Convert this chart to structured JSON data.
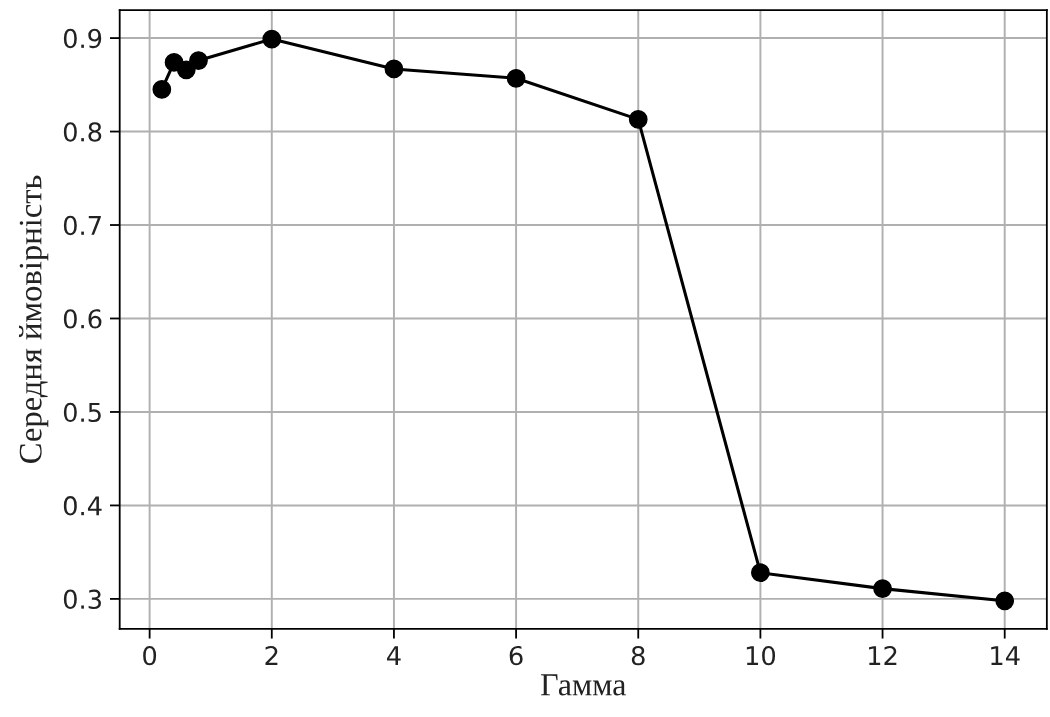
{
  "chart_data": {
    "type": "line",
    "xlabel": "Гамма",
    "ylabel": "Середня ймовірність",
    "x": [
      0.2,
      0.4,
      0.6,
      0.8,
      2,
      4,
      6,
      8,
      10,
      12,
      14
    ],
    "series": [
      {
        "color": "#000000",
        "values": [
          0.845,
          0.874,
          0.866,
          0.876,
          0.899,
          0.867,
          0.857,
          0.813,
          0.328,
          0.311,
          0.298
        ]
      }
    ],
    "xlim": [
      -0.49,
      14.69
    ],
    "ylim": [
      0.268,
      0.93
    ],
    "xticks": [
      0,
      2,
      4,
      6,
      8,
      10,
      12,
      14
    ],
    "yticks": [
      0.3,
      0.4,
      0.5,
      0.6,
      0.7,
      0.8,
      0.9
    ],
    "grid": true,
    "marker": "circle",
    "line_style": "solid"
  }
}
